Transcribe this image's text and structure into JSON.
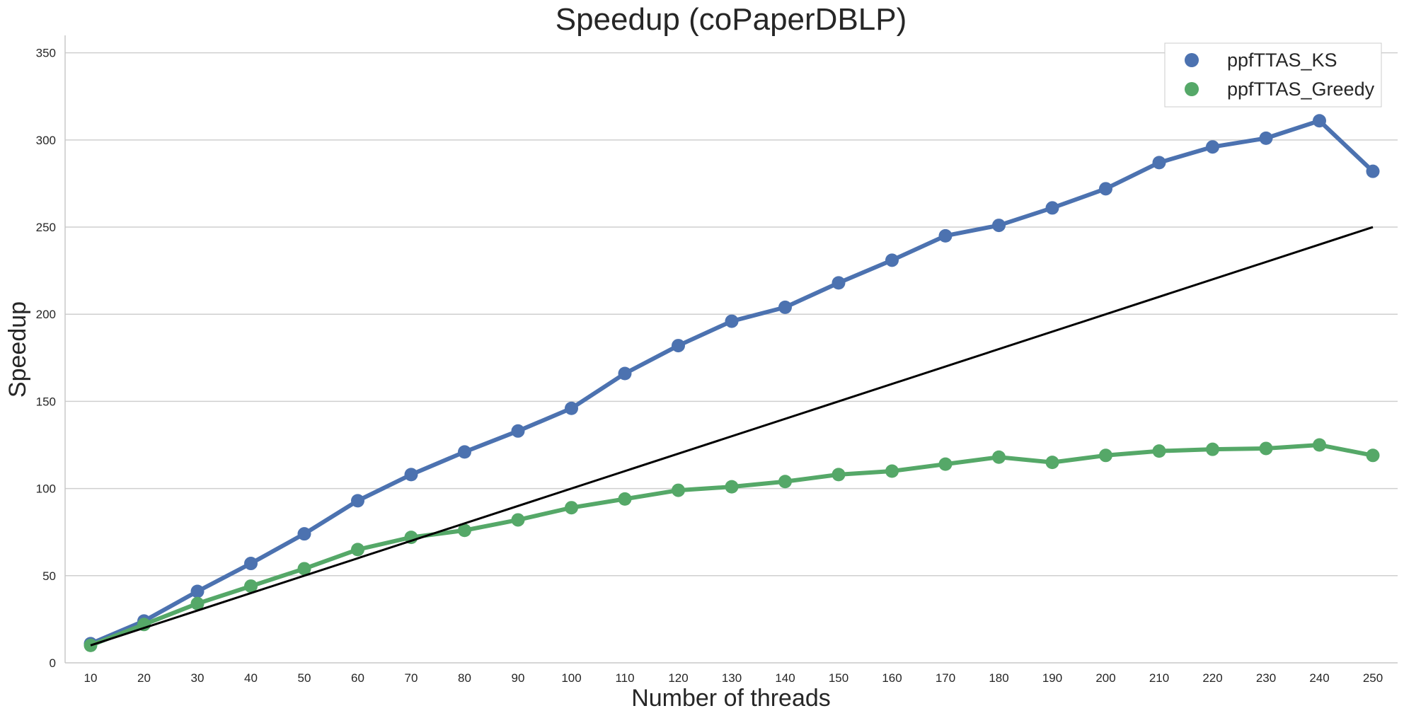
{
  "chart_data": {
    "type": "line",
    "title": "Speedup (coPaperDBLP)",
    "xlabel": "Number of threads",
    "ylabel": "Speedup",
    "ylim": [
      0,
      360
    ],
    "y_ticks": [
      0,
      50,
      100,
      150,
      200,
      250,
      300,
      350
    ],
    "grid": "horizontal",
    "legend_position": "top-right",
    "categories": [
      10,
      20,
      30,
      40,
      50,
      60,
      70,
      80,
      90,
      100,
      110,
      120,
      130,
      140,
      150,
      160,
      170,
      180,
      190,
      200,
      210,
      220,
      230,
      240,
      250
    ],
    "series": [
      {
        "name": "ppfTTAS_KS",
        "color": "#4c72b0",
        "marker": "circle",
        "values": [
          11,
          24,
          41,
          57,
          74,
          93,
          108,
          121,
          133,
          146,
          166,
          182,
          196,
          204,
          218,
          231,
          245,
          251,
          261,
          272,
          287,
          296,
          301,
          311,
          282
        ]
      },
      {
        "name": "ppfTTAS_Greedy",
        "color": "#55a868",
        "marker": "circle",
        "values": [
          10,
          22,
          34,
          44,
          54,
          65,
          72,
          76,
          82,
          89,
          94,
          99,
          101,
          104,
          108,
          110,
          114,
          118,
          115,
          119,
          121.5,
          122.5,
          123,
          125,
          119
        ]
      }
    ],
    "reference_line": {
      "color": "#000000",
      "x": [
        10,
        250
      ],
      "y": [
        10,
        250
      ]
    }
  }
}
